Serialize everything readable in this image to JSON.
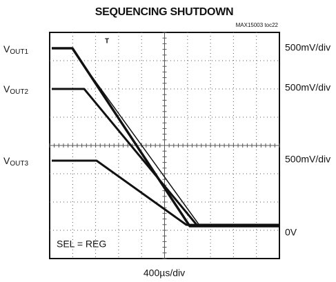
{
  "title": "SEQUENCING SHUTDOWN",
  "subtitle": "MAX15003 toc22",
  "channels": [
    {
      "name": "V",
      "sub": "OUT1",
      "scale": "500mV/div"
    },
    {
      "name": "V",
      "sub": "OUT2",
      "scale": "500mV/div"
    },
    {
      "name": "V",
      "sub": "OUT3",
      "scale": "500mV/div"
    }
  ],
  "zero_label": "0V",
  "note": "SEL = REG",
  "time_scale": "400µs/div"
}
